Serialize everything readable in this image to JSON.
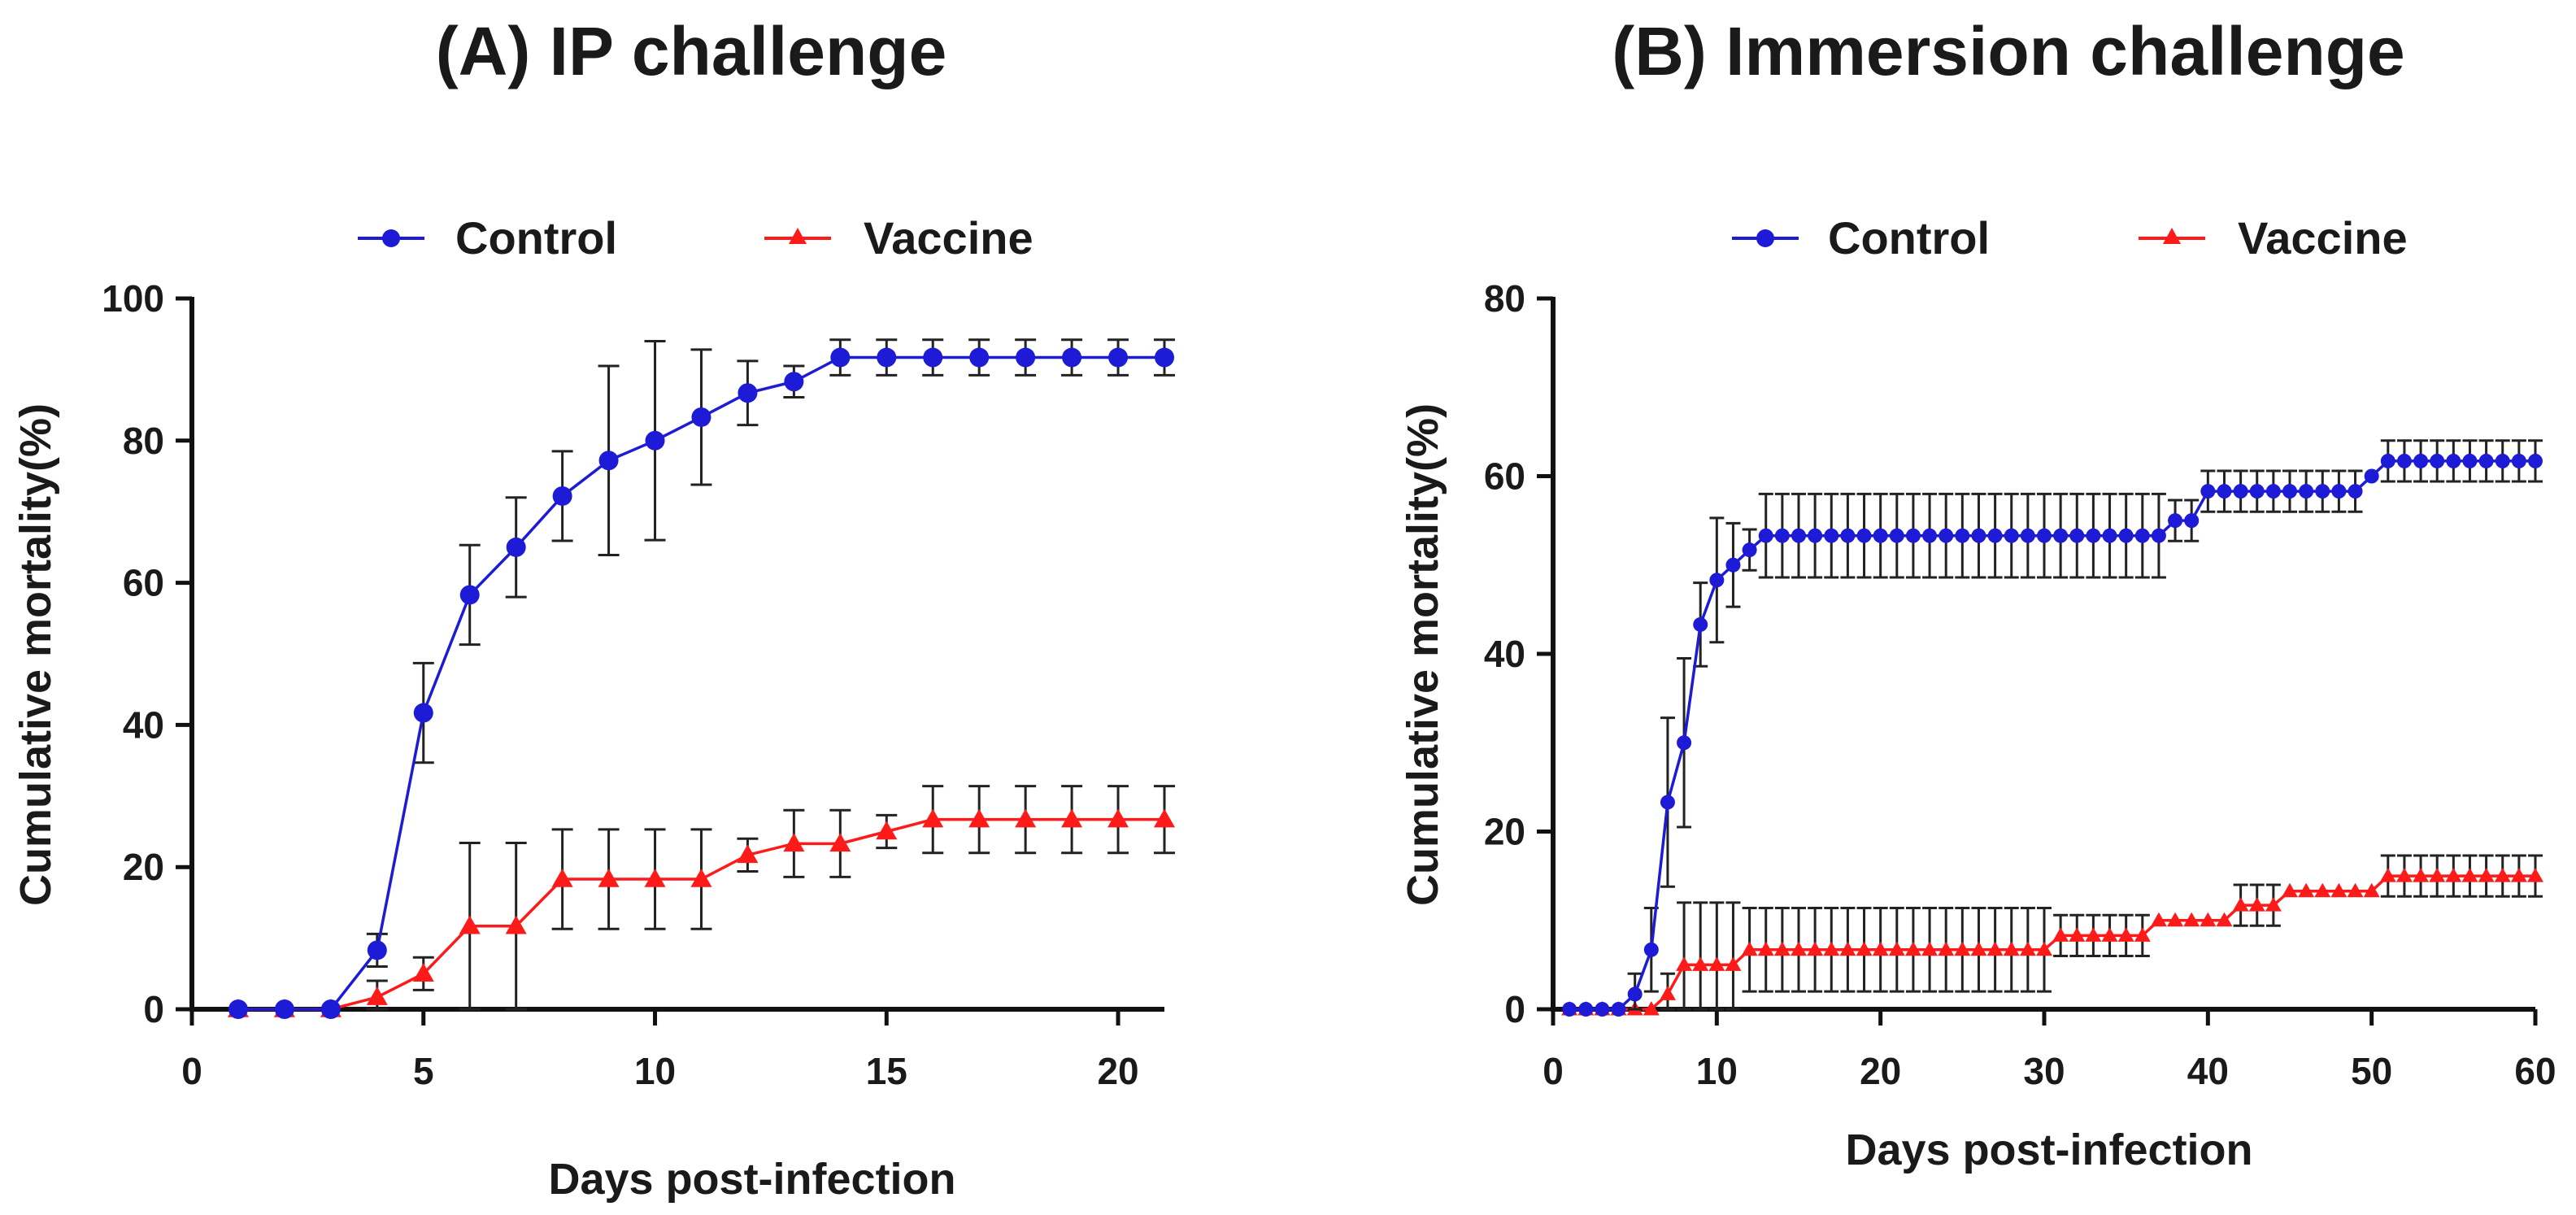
{
  "colors": {
    "control": "#1d1bd6",
    "vaccine": "#ff1a1a",
    "axis": "#111111",
    "errbar": "#222222"
  },
  "chart_data": [
    {
      "type": "line",
      "title": "(A) IP challenge",
      "xlabel": "Days post-infection",
      "ylabel": "Cumulative mortality(%)",
      "xlim": [
        0,
        21
      ],
      "ylim": [
        0,
        100
      ],
      "xticks": [
        0,
        5,
        10,
        15,
        20
      ],
      "yticks": [
        0,
        20,
        40,
        60,
        80,
        100
      ],
      "legend": [
        "Control",
        "Vaccine"
      ],
      "legend_position": "top",
      "series": [
        {
          "name": "Control",
          "marker": "circle",
          "x": [
            1,
            2,
            3,
            4,
            5,
            6,
            7,
            8,
            9,
            10,
            11,
            12,
            13,
            14,
            15,
            16,
            17,
            18,
            19,
            20,
            21
          ],
          "y": [
            0,
            0,
            0,
            8.3,
            41.7,
            58.3,
            65,
            72.2,
            77.2,
            80,
            83.3,
            86.7,
            88.3,
            91.7,
            91.7,
            91.7,
            91.7,
            91.7,
            91.7,
            91.7,
            91.7
          ],
          "err": [
            0,
            0,
            0,
            2.3,
            7,
            7,
            7,
            6.3,
            13.3,
            14,
            9.5,
            4.5,
            2.2,
            2.5,
            2.5,
            2.5,
            2.5,
            2.5,
            2.5,
            2.5,
            2.5
          ]
        },
        {
          "name": "Vaccine",
          "marker": "triangle",
          "x": [
            1,
            2,
            3,
            4,
            5,
            6,
            7,
            8,
            9,
            10,
            11,
            12,
            13,
            14,
            15,
            16,
            17,
            18,
            19,
            20,
            21
          ],
          "y": [
            0,
            0,
            0,
            1.7,
            5,
            11.7,
            11.7,
            18.3,
            18.3,
            18.3,
            18.3,
            21.7,
            23.3,
            23.3,
            25,
            26.7,
            26.7,
            26.7,
            26.7,
            26.7,
            26.7
          ],
          "err": [
            0,
            0,
            0,
            2.3,
            2.3,
            11.7,
            11.7,
            7,
            7,
            7,
            7,
            2.3,
            4.7,
            4.7,
            2.3,
            4.7,
            4.7,
            4.7,
            4.7,
            4.7,
            4.7
          ]
        }
      ]
    },
    {
      "type": "line",
      "title": "(B) Immersion  challenge",
      "xlabel": "Days post-infection",
      "ylabel": "Cumulative mortality(%)",
      "xlim": [
        0,
        60
      ],
      "ylim": [
        0,
        80
      ],
      "xticks": [
        0,
        10,
        20,
        30,
        40,
        50,
        60
      ],
      "yticks": [
        0,
        20,
        40,
        60,
        80
      ],
      "legend": [
        "Control",
        "Vaccine"
      ],
      "legend_position": "top",
      "series": [
        {
          "name": "Control",
          "marker": "circle",
          "x": [
            1,
            2,
            3,
            4,
            5,
            6,
            7,
            8,
            9,
            10,
            11,
            12,
            13,
            14,
            15,
            16,
            17,
            18,
            19,
            20,
            21,
            22,
            23,
            24,
            25,
            26,
            27,
            28,
            29,
            30,
            31,
            32,
            33,
            34,
            35,
            36,
            37,
            38,
            39,
            40,
            41,
            42,
            43,
            44,
            45,
            46,
            47,
            48,
            49,
            50,
            51,
            52,
            53,
            54,
            55,
            56,
            57,
            58,
            59,
            60
          ],
          "y": [
            0,
            0,
            0,
            0,
            1.7,
            6.7,
            23.3,
            30,
            43.3,
            48.3,
            50,
            51.7,
            53.3,
            53.3,
            53.3,
            53.3,
            53.3,
            53.3,
            53.3,
            53.3,
            53.3,
            53.3,
            53.3,
            53.3,
            53.3,
            53.3,
            53.3,
            53.3,
            53.3,
            53.3,
            53.3,
            53.3,
            53.3,
            53.3,
            53.3,
            53.3,
            53.3,
            55,
            55,
            58.3,
            58.3,
            58.3,
            58.3,
            58.3,
            58.3,
            58.3,
            58.3,
            58.3,
            58.3,
            60,
            61.7,
            61.7,
            61.7,
            61.7,
            61.7,
            61.7,
            61.7,
            61.7,
            61.7,
            61.7
          ],
          "err": [
            0,
            0,
            0,
            0,
            2.3,
            4.7,
            9.5,
            9.5,
            4.7,
            7,
            4.7,
            2.3,
            4.7,
            4.7,
            4.7,
            4.7,
            4.7,
            4.7,
            4.7,
            4.7,
            4.7,
            4.7,
            4.7,
            4.7,
            4.7,
            4.7,
            4.7,
            4.7,
            4.7,
            4.7,
            4.7,
            4.7,
            4.7,
            4.7,
            4.7,
            4.7,
            4.7,
            2.3,
            2.3,
            2.3,
            2.3,
            2.3,
            2.3,
            2.3,
            2.3,
            2.3,
            2.3,
            2.3,
            2.3,
            0,
            2.3,
            2.3,
            2.3,
            2.3,
            2.3,
            2.3,
            2.3,
            2.3,
            2.3,
            2.3
          ]
        },
        {
          "name": "Vaccine",
          "marker": "triangle",
          "x": [
            1,
            2,
            3,
            4,
            5,
            6,
            7,
            8,
            9,
            10,
            11,
            12,
            13,
            14,
            15,
            16,
            17,
            18,
            19,
            20,
            21,
            22,
            23,
            24,
            25,
            26,
            27,
            28,
            29,
            30,
            31,
            32,
            33,
            34,
            35,
            36,
            37,
            38,
            39,
            40,
            41,
            42,
            43,
            44,
            45,
            46,
            47,
            48,
            49,
            50,
            51,
            52,
            53,
            54,
            55,
            56,
            57,
            58,
            59,
            60
          ],
          "y": [
            0,
            0,
            0,
            0,
            0,
            0,
            1.7,
            5,
            5,
            5,
            5,
            6.7,
            6.7,
            6.7,
            6.7,
            6.7,
            6.7,
            6.7,
            6.7,
            6.7,
            6.7,
            6.7,
            6.7,
            6.7,
            6.7,
            6.7,
            6.7,
            6.7,
            6.7,
            6.7,
            8.3,
            8.3,
            8.3,
            8.3,
            8.3,
            8.3,
            10,
            10,
            10,
            10,
            10,
            11.7,
            11.7,
            11.7,
            13.3,
            13.3,
            13.3,
            13.3,
            13.3,
            13.3,
            15,
            15,
            15,
            15,
            15,
            15,
            15,
            15,
            15,
            15
          ],
          "err": [
            0,
            0,
            0,
            0,
            0,
            0,
            2.3,
            7,
            7,
            7,
            7,
            4.7,
            4.7,
            4.7,
            4.7,
            4.7,
            4.7,
            4.7,
            4.7,
            4.7,
            4.7,
            4.7,
            4.7,
            4.7,
            4.7,
            4.7,
            4.7,
            4.7,
            4.7,
            4.7,
            2.3,
            2.3,
            2.3,
            2.3,
            2.3,
            2.3,
            0,
            0,
            0,
            0,
            0,
            2.3,
            2.3,
            2.3,
            0,
            0,
            0,
            0,
            0,
            0,
            2.3,
            2.3,
            2.3,
            2.3,
            2.3,
            2.3,
            2.3,
            2.3,
            2.3,
            2.3
          ]
        }
      ]
    }
  ]
}
